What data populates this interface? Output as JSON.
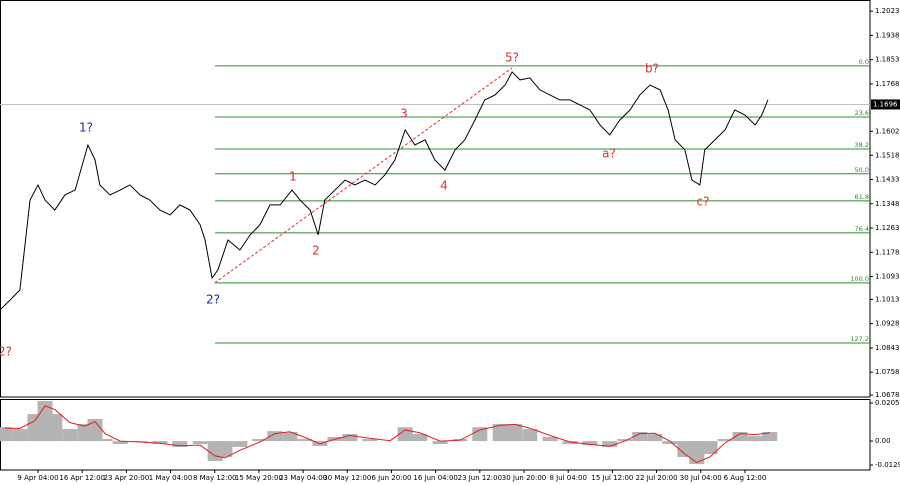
{
  "chart_data": [
    {
      "type": "line",
      "x": [
        -0.86,
        -0.63,
        -0.41,
        -0.18,
        0,
        0.16,
        0.38,
        0.61,
        0.84,
        1.13,
        1.29,
        1.4,
        1.63,
        1.86,
        2.08,
        2.31,
        2.53,
        2.76,
        2.99,
        3.21,
        3.44,
        3.67,
        3.78,
        3.94,
        4.07,
        4.3,
        4.57,
        4.8,
        5.02,
        5.25,
        5.48,
        5.75,
        5.93,
        6.16,
        6.34,
        6.49,
        6.72,
        6.95,
        7.17,
        7.4,
        7.63,
        7.85,
        8.08,
        8.31,
        8.53,
        8.76,
        8.98,
        9.21,
        9.44,
        9.66,
        9.89,
        10.11,
        10.34,
        10.57,
        10.73,
        10.91,
        11.13,
        11.36,
        11.59,
        11.81,
        12.04,
        12.27,
        12.49,
        12.72,
        12.94,
        13.17,
        13.4,
        13.62,
        13.85,
        14.08,
        14.26,
        14.42,
        14.64,
        14.8,
        14.98,
        15.09,
        15.32,
        15.55,
        15.77,
        16.0,
        16.23,
        16.38,
        16.52
      ],
      "series": [
        {
          "color": "#000000",
          "values": [
            1.0976,
            1.1011,
            1.1046,
            1.1361,
            1.1414,
            1.1361,
            1.1326,
            1.1379,
            1.1396,
            1.1554,
            1.1502,
            1.1414,
            1.1379,
            1.1396,
            1.1414,
            1.1379,
            1.1361,
            1.1326,
            1.1309,
            1.1344,
            1.1326,
            1.1274,
            1.1221,
            1.1088,
            1.1116,
            1.1221,
            1.1186,
            1.1239,
            1.1274,
            1.1344,
            1.1344,
            1.1396,
            1.1361,
            1.1326,
            1.1239,
            1.1361,
            1.1396,
            1.1431,
            1.1414,
            1.1431,
            1.1414,
            1.1449,
            1.1502,
            1.1607,
            1.1554,
            1.1572,
            1.1502,
            1.1466,
            1.1537,
            1.1572,
            1.1642,
            1.1712,
            1.1729,
            1.1764,
            1.181,
            1.1782,
            1.1789,
            1.1747,
            1.1729,
            1.1712,
            1.1712,
            1.1694,
            1.1677,
            1.1624,
            1.1589,
            1.1642,
            1.1677,
            1.1729,
            1.1764,
            1.1747,
            1.1677,
            1.1572,
            1.1537,
            1.1431,
            1.1414,
            1.1537,
            1.1572,
            1.1607,
            1.1677,
            1.1659,
            1.1624,
            1.1659,
            1.1712
          ]
        }
      ],
      "xlim": [
        -0.86,
        18.83
      ],
      "xticks": [
        {
          "value": 0,
          "label": "9 Apr 04:00"
        },
        {
          "value": 1,
          "label": "16 Apr 12:00"
        },
        {
          "value": 2,
          "label": "23 Apr 20:00"
        },
        {
          "value": 3,
          "label": "1 May 04:00"
        },
        {
          "value": 4,
          "label": "8 May 12:00"
        },
        {
          "value": 5,
          "label": "15 May 20:00"
        },
        {
          "value": 6,
          "label": "23 May 04:00"
        },
        {
          "value": 7,
          "label": "30 May 12:00"
        },
        {
          "value": 8,
          "label": "6 Jun 20:00"
        },
        {
          "value": 9,
          "label": "16 Jun 04:00"
        },
        {
          "value": 10,
          "label": "23 Jun 12:00"
        },
        {
          "value": 11,
          "label": "30 Jun 20:00"
        },
        {
          "value": 12,
          "label": "8 Jul 04:00"
        },
        {
          "value": 13,
          "label": "15 Jul 12:00"
        },
        {
          "value": 14,
          "label": "22 Jul 20:00"
        },
        {
          "value": 15,
          "label": "30 Jul 04:00"
        },
        {
          "value": 16,
          "label": "6 Aug 12:00"
        }
      ],
      "ylim": [
        1.0671,
        1.2062
      ],
      "yticks": [
        1.2023,
        1.1938,
        1.1853,
        1.1768,
        1.1602,
        1.1518,
        1.1433,
        1.1348,
        1.1263,
        1.1178,
        1.1093,
        1.1013,
        1.0928,
        1.0843,
        1.0758,
        1.0678
      ],
      "current_price": 1.1696,
      "fib_color": "#2e8b2e",
      "fib_levels": [
        {
          "label": "0.0",
          "value": 1.1831
        },
        {
          "label": "23.6",
          "value": 1.1652
        },
        {
          "label": "38.2",
          "value": 1.154
        },
        {
          "label": "50.0",
          "value": 1.1453
        },
        {
          "label": "61.8",
          "value": 1.1358
        },
        {
          "label": "76.4",
          "value": 1.1246
        },
        {
          "label": "100.0",
          "value": 1.1071
        },
        {
          "label": "127.2",
          "value": 1.086
        }
      ],
      "trend_line": {
        "color": "#e03030",
        "x": [
          4.0,
          10.73
        ],
        "values": [
          1.1071,
          1.1824
        ]
      },
      "annotations": [
        {
          "text": "2?",
          "color": "#e03030"
        },
        {
          "text": "1?",
          "color": "#2020c8"
        },
        {
          "text": "2?",
          "color": "#2020c8"
        },
        {
          "text": "1",
          "color": "#e03030"
        },
        {
          "text": "2",
          "color": "#e03030"
        },
        {
          "text": "3",
          "color": "#e03030"
        },
        {
          "text": "4",
          "color": "#e03030"
        },
        {
          "text": "5?",
          "color": "#e03030"
        },
        {
          "text": "a?",
          "color": "#e03030"
        },
        {
          "text": "b?",
          "color": "#e03030"
        },
        {
          "text": "c?",
          "color": "#e03030"
        }
      ]
    },
    {
      "type": "bar",
      "x": [
        -0.75,
        -0.41,
        -0.07,
        0.16,
        0.38,
        0.72,
        1.06,
        1.29,
        1.52,
        1.86,
        2.31,
        2.76,
        3.21,
        3.67,
        4.01,
        4.23,
        4.57,
        5.02,
        5.36,
        5.7,
        6.04,
        6.38,
        6.72,
        7.06,
        7.51,
        7.97,
        8.31,
        8.64,
        9.1,
        9.55,
        10.0,
        10.46,
        10.79,
        11.13,
        11.59,
        12.04,
        12.49,
        12.94,
        13.28,
        13.62,
        13.96,
        14.3,
        14.64,
        14.91,
        15.21,
        15.55,
        15.89,
        16.23,
        16.56
      ],
      "series": [
        {
          "color": "#b4b4b4",
          "values": [
            0.0075,
            0.0065,
            0.0146,
            0.0216,
            0.0146,
            0.0065,
            0.0092,
            0.0119,
            0.0011,
            -0.0016,
            -0.0005,
            -0.0016,
            -0.0032,
            -0.0016,
            -0.0108,
            -0.0086,
            -0.0032,
            0.0011,
            0.0054,
            0.0049,
            0.0011,
            -0.0027,
            0.0022,
            0.0038,
            0.0011,
            0,
            0.0075,
            0.0038,
            -0.0016,
            0.0011,
            0.0075,
            0.0092,
            0.0092,
            0.0065,
            0.0022,
            -0.0016,
            -0.0022,
            -0.0032,
            0.0011,
            0.0049,
            0.0038,
            -0.0016,
            -0.0086,
            -0.0124,
            -0.007,
            0.0011,
            0.0049,
            0.0027,
            0.0049
          ]
        },
        {
          "color": "#e02020",
          "type": "line",
          "values": [
            0.007,
            0.0068,
            0.011,
            0.019,
            0.017,
            0.01,
            0.008,
            0.0105,
            0.004,
            0,
            -0.0005,
            -0.0012,
            -0.0025,
            -0.0022,
            -0.008,
            -0.009,
            -0.005,
            -0.0005,
            0.004,
            0.005,
            0.002,
            -0.0015,
            0.001,
            0.003,
            0.0015,
            0.0002,
            0.006,
            0.0045,
            0,
            0.0005,
            0.006,
            0.0085,
            0.009,
            0.007,
            0.003,
            -0.0005,
            -0.0018,
            -0.0028,
            0,
            0.004,
            0.0042,
            0,
            -0.007,
            -0.0115,
            -0.0085,
            -0.001,
            0.004,
            0.0035,
            0.0045
          ]
        }
      ],
      "ylim": [
        -0.0156,
        0.0227
      ],
      "yticks": [
        0.0205,
        {
          "value": 0,
          "label": "0.00"
        },
        -0.0129
      ]
    }
  ]
}
